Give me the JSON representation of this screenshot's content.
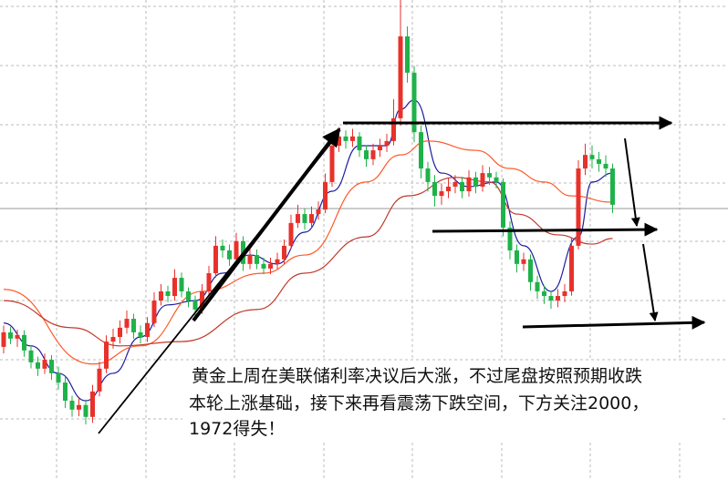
{
  "chart_data": {
    "type": "candlestick",
    "ylim": [
      1925,
      2070
    ],
    "up_color": "#e8312b",
    "down_color": "#1fb24a",
    "open": [
      1965.0,
      1969.4,
      1967.5,
      1968.6,
      1963.9,
      1960.3,
      1958.4,
      1961.1,
      1957.0,
      1954.2,
      1948.7,
      1946.0,
      1947.4,
      1943.8,
      1951.5,
      1958.4,
      1966.6,
      1968.0,
      1970.8,
      1973.5,
      1969.4,
      1968.0,
      1972.2,
      1979.0,
      1981.8,
      1980.4,
      1985.9,
      1981.8,
      1979.0,
      1976.3,
      1981.8,
      1987.3,
      1995.6,
      1994.2,
      1991.5,
      1997.0,
      1990.1,
      1992.8,
      1990.1,
      1988.7,
      1990.1,
      1991.5,
      1995.6,
      2002.5,
      2005.2,
      2002.5,
      2005.2,
      2006.6,
      2014.9,
      2025.9,
      2028.7,
      2027.3,
      2028.7,
      2024.5,
      2021.8,
      2024.5,
      2025.9,
      2027.3,
      2034.2,
      2059.0,
      2048.0,
      2030.0,
      2019.0,
      2014.9,
      2010.7,
      2012.1,
      2013.5,
      2014.9,
      2012.1,
      2016.3,
      2013.5,
      2017.6,
      2016.3,
      2014.9,
      2001.1,
      1994.2,
      1990.1,
      1991.5,
      1984.6,
      1981.8,
      1980.4,
      1979.0,
      1980.4,
      1981.8,
      1995.6,
      2019.0,
      2023.1,
      2021.8,
      2020.4,
      2019.0
    ],
    "high": [
      1971.5,
      1971.0,
      1970.2,
      1970.0,
      1965.5,
      1962.0,
      1963.0,
      1962.5,
      1959.0,
      1956.0,
      1950.2,
      1949.5,
      1949.0,
      1953.5,
      1960.5,
      1968.5,
      1970.5,
      1973.0,
      1976.0,
      1975.0,
      1971.5,
      1974.0,
      1981.5,
      1984.0,
      1983.5,
      1988.5,
      1987.5,
      1983.0,
      1980.5,
      1984.0,
      1989.5,
      1998.5,
      1997.5,
      1996.0,
      1999.5,
      1998.5,
      1995.0,
      1994.5,
      1992.0,
      1992.0,
      1993.5,
      1997.5,
      2005.0,
      2008.0,
      2007.0,
      2007.5,
      2009.0,
      2017.5,
      2028.5,
      2031.5,
      2030.5,
      2031.0,
      2030.0,
      2026.0,
      2026.5,
      2028.0,
      2029.5,
      2040.0,
      2070.0,
      2062.0,
      2050.0,
      2032.0,
      2021.0,
      2017.0,
      2014.5,
      2016.0,
      2017.0,
      2016.5,
      2018.5,
      2018.0,
      2020.0,
      2019.5,
      2018.0,
      2016.0,
      2003.0,
      1996.0,
      1993.5,
      1993.0,
      1986.5,
      1983.5,
      1982.0,
      1982.5,
      1984.0,
      1998.0,
      2021.5,
      2026.5,
      2026.0,
      2024.0,
      2023.0,
      2020.5
    ],
    "low": [
      1963.0,
      1965.8,
      1965.0,
      1962.0,
      1958.5,
      1956.2,
      1956.8,
      1955.0,
      1952.0,
      1946.5,
      1943.8,
      1944.0,
      1941.5,
      1942.0,
      1950.0,
      1957.0,
      1964.5,
      1966.0,
      1969.0,
      1967.5,
      1966.0,
      1966.5,
      1971.0,
      1977.5,
      1978.5,
      1979.0,
      1980.0,
      1977.0,
      1974.0,
      1975.0,
      1980.5,
      1986.0,
      1992.0,
      1989.5,
      1990.0,
      1988.0,
      1988.5,
      1988.5,
      1987.0,
      1987.0,
      1988.5,
      1990.0,
      1994.5,
      2001.0,
      2000.5,
      2001.0,
      2003.5,
      2005.5,
      2013.5,
      2024.0,
      2025.0,
      2025.5,
      2022.5,
      2019.5,
      2020.0,
      2022.5,
      2024.0,
      2026.0,
      2032.0,
      2045.0,
      2027.0,
      2016.0,
      2012.0,
      2007.5,
      2008.0,
      2010.0,
      2011.5,
      2010.0,
      2010.5,
      2011.5,
      2012.0,
      2014.0,
      2013.0,
      1998.5,
      1991.5,
      1987.5,
      1988.0,
      1982.0,
      1979.5,
      1978.0,
      1976.5,
      1977.0,
      1978.5,
      1980.5,
      1994.5,
      2017.0,
      2019.0,
      2018.0,
      2016.5,
      2005.5
    ],
    "close": [
      1969.4,
      1967.5,
      1968.6,
      1963.9,
      1960.3,
      1958.4,
      1961.1,
      1957.0,
      1954.2,
      1948.7,
      1946.0,
      1947.4,
      1943.8,
      1951.5,
      1958.4,
      1966.6,
      1968.0,
      1970.8,
      1973.5,
      1969.4,
      1968.0,
      1972.2,
      1979.0,
      1981.8,
      1980.4,
      1985.9,
      1981.8,
      1979.0,
      1976.3,
      1981.8,
      1987.3,
      1995.6,
      1994.2,
      1991.5,
      1997.0,
      1990.1,
      1992.8,
      1990.1,
      1988.7,
      1990.1,
      1991.5,
      1995.6,
      2002.5,
      2005.2,
      2002.5,
      2005.2,
      2006.6,
      2014.9,
      2025.9,
      2028.7,
      2027.3,
      2028.7,
      2024.5,
      2021.8,
      2024.5,
      2025.9,
      2027.3,
      2034.2,
      2059.0,
      2048.0,
      2030.0,
      2019.0,
      2014.9,
      2010.7,
      2012.1,
      2013.5,
      2014.9,
      2012.1,
      2016.3,
      2013.5,
      2017.6,
      2016.3,
      2014.9,
      2001.1,
      1994.2,
      1990.1,
      1991.5,
      1984.6,
      1981.8,
      1980.4,
      1979.0,
      1980.4,
      1981.8,
      1995.6,
      2019.0,
      2023.1,
      2021.8,
      2020.4,
      2019.0,
      2008.0
    ],
    "series": [
      {
        "color": "#1c1ca0",
        "x": [
          0,
          4,
          8,
          12,
          16,
          20,
          24,
          28,
          32,
          36,
          40,
          44,
          48,
          52,
          56,
          58,
          60,
          64,
          68,
          72,
          76,
          80,
          84,
          86,
          89
        ],
        "values": [
          1972.2,
          1965.3,
          1957.0,
          1948.7,
          1957.0,
          1968.0,
          1977.7,
          1979.0,
          1987.3,
          1992.8,
          1990.1,
          1999.7,
          2012.1,
          2025.9,
          2025.9,
          2036.9,
          2039.7,
          2017.6,
          2013.5,
          2014.9,
          1995.6,
          1981.8,
          1998.3,
          2014.9,
          2017.6
        ]
      },
      {
        "color": "#ff5a2a",
        "x": [
          0,
          13,
          20,
          29,
          38,
          44,
          53,
          58,
          62,
          69,
          74,
          79,
          83,
          89
        ],
        "values": [
          1982.4,
          1959.8,
          1965.3,
          1981.8,
          1987.3,
          1992.8,
          2014.9,
          2023.1,
          2027.3,
          2024.5,
          2019.0,
          2014.9,
          2010.7,
          2008.8
        ]
      },
      {
        "color": "#c0392b",
        "x": [
          0,
          10,
          17,
          26,
          37,
          44,
          53,
          59,
          66,
          71,
          75,
          81,
          86,
          89
        ],
        "values": [
          1979.0,
          1970.8,
          1965.3,
          1966.6,
          1976.3,
          1987.3,
          1998.3,
          2010.7,
          2016.3,
          2014.9,
          2005.2,
          1998.9,
          1996.1,
          1997.8
        ]
      }
    ],
    "annotation": [
      "黄金上周在美联储利率决议后大涨，不过尾盘按照预期收跌",
      "本轮上涨基础，接下来再看震荡下跌空间，下方关注2000，",
      "1972得失！"
    ]
  }
}
